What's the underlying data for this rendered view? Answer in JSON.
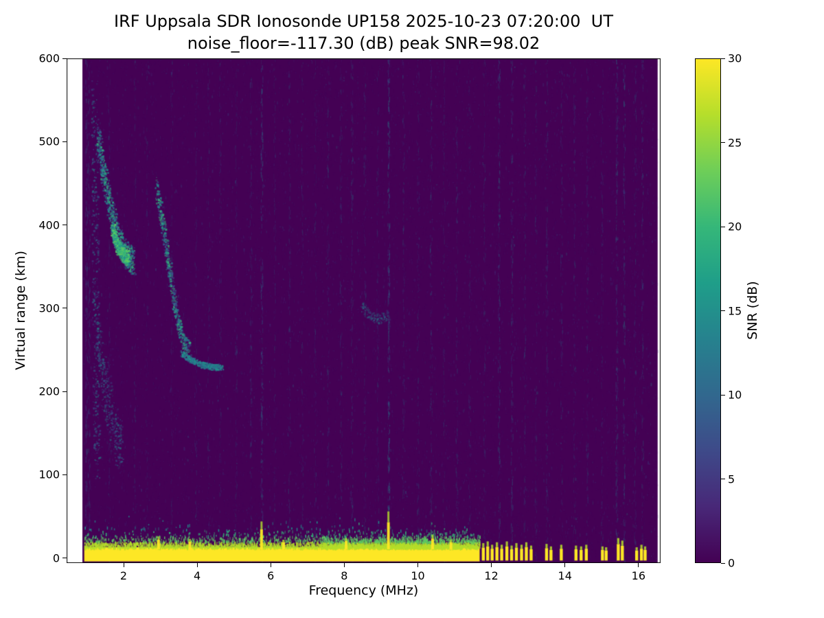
{
  "window": {
    "background": "#ffffff"
  },
  "chart_data": {
    "type": "heatmap",
    "title": "IRF Uppsala SDR Ionosonde UP158 2025-10-23 07:20:00  UT",
    "subtitle": "noise_floor=-117.30 (dB) peak SNR=98.02",
    "station": "IRF Uppsala SDR Ionosonde UP158",
    "timestamp_ut": "2025-10-23 07:20:00",
    "noise_floor_db": -117.3,
    "peak_snr_db": 98.02,
    "xlabel": "Frequency (MHz)",
    "ylabel": "Virtual range (km)",
    "xlim": [
      0.45,
      16.6
    ],
    "ylim": [
      -6,
      600
    ],
    "xticks": [
      2,
      4,
      6,
      8,
      10,
      12,
      14,
      16
    ],
    "yticks": [
      0,
      100,
      200,
      300,
      400,
      500,
      600
    ],
    "grid": false,
    "colorbar": {
      "label": "SNR (dB)",
      "min": 0,
      "max": 30,
      "ticks": [
        0,
        5,
        10,
        15,
        20,
        25,
        30
      ],
      "colormap": "viridis",
      "stops": [
        "#440154",
        "#482878",
        "#3e4a89",
        "#31688e",
        "#26828e",
        "#1f9e89",
        "#35b779",
        "#6ece58",
        "#b5de2b",
        "#fde725"
      ]
    },
    "data_extent": {
      "f_min": 0.88,
      "f_max": 16.52
    },
    "colors": {
      "plot_bg": "#440154",
      "noise_colors": [
        "#46327e",
        "#3b528b",
        "#2c728e",
        "#21918c"
      ],
      "band_core": "#fde725",
      "fringe": [
        "#b5de2b",
        "#5ec962",
        "#35b779",
        "#21918c"
      ],
      "text": "#000000"
    },
    "features": {
      "ground_pulse_band": {
        "f_start": 0.93,
        "f_end": 11.68,
        "km_low": -4,
        "km_high": 13,
        "snr_db": 30
      },
      "band_spikes": [
        {
          "f": 2.95,
          "top_km": 26
        },
        {
          "f": 3.8,
          "top_km": 23
        },
        {
          "f": 5.75,
          "top_km": 44
        },
        {
          "f": 6.35,
          "top_km": 22
        },
        {
          "f": 8.05,
          "top_km": 24
        },
        {
          "f": 9.2,
          "top_km": 56
        },
        {
          "f": 10.4,
          "top_km": 28
        },
        {
          "f": 10.9,
          "top_km": 22
        }
      ],
      "low_altitude_blips": [
        {
          "f": 11.78,
          "top_km": 18
        },
        {
          "f": 11.9,
          "top_km": 20
        },
        {
          "f": 12.02,
          "top_km": 16
        },
        {
          "f": 12.15,
          "top_km": 19
        },
        {
          "f": 12.28,
          "top_km": 16
        },
        {
          "f": 12.42,
          "top_km": 20
        },
        {
          "f": 12.55,
          "top_km": 15
        },
        {
          "f": 12.68,
          "top_km": 18
        },
        {
          "f": 12.82,
          "top_km": 16
        },
        {
          "f": 12.95,
          "top_km": 19
        },
        {
          "f": 13.08,
          "top_km": 15
        },
        {
          "f": 13.5,
          "top_km": 17
        },
        {
          "f": 13.62,
          "top_km": 14
        },
        {
          "f": 13.9,
          "top_km": 16
        },
        {
          "f": 14.3,
          "top_km": 15
        },
        {
          "f": 14.44,
          "top_km": 14
        },
        {
          "f": 14.58,
          "top_km": 16
        },
        {
          "f": 15.02,
          "top_km": 14
        },
        {
          "f": 15.12,
          "top_km": 13
        },
        {
          "f": 15.45,
          "top_km": 24
        },
        {
          "f": 15.56,
          "top_km": 21
        },
        {
          "f": 15.95,
          "top_km": 13
        },
        {
          "f": 16.08,
          "top_km": 16
        },
        {
          "f": 16.18,
          "top_km": 14
        }
      ],
      "echo_traces": [
        {
          "name": "f-region-descending-trace",
          "points": [
            [
              1.3,
              505
            ],
            [
              1.42,
              468
            ],
            [
              1.55,
              438
            ],
            [
              1.68,
              412
            ],
            [
              1.8,
              390
            ],
            [
              1.95,
              372
            ],
            [
              2.1,
              362
            ],
            [
              2.25,
              357
            ]
          ],
          "xspread": 0.07,
          "yspread": 16,
          "density": 1000,
          "alpha_min": 0.25,
          "alpha_max": 0.9,
          "colors": [
            "#21918c",
            "#2c728e",
            "#35b779",
            "#3b528b"
          ]
        },
        {
          "name": "f-region-bright-core",
          "points": [
            [
              1.68,
              395
            ],
            [
              1.82,
              375
            ],
            [
              1.98,
              365
            ],
            [
              2.1,
              361
            ]
          ],
          "xspread": 0.05,
          "yspread": 9,
          "density": 520,
          "alpha_min": 0.5,
          "alpha_max": 1,
          "colors": [
            "#35b779",
            "#5ec962",
            "#21918c"
          ]
        },
        {
          "name": "cusp-descending-trace",
          "points": [
            [
              2.88,
              448
            ],
            [
              2.98,
              420
            ],
            [
              3.08,
              392
            ],
            [
              3.18,
              362
            ],
            [
              3.28,
              332
            ],
            [
              3.38,
              305
            ],
            [
              3.5,
              278
            ],
            [
              3.62,
              260
            ],
            [
              3.78,
              250
            ]
          ],
          "xspread": 0.05,
          "yspread": 11,
          "density": 650,
          "alpha_min": 0.25,
          "alpha_max": 0.85,
          "colors": [
            "#21918c",
            "#2c728e",
            "#3b528b",
            "#35b779"
          ]
        },
        {
          "name": "flat-echo-230km",
          "points": [
            [
              3.55,
              247
            ],
            [
              3.8,
              239
            ],
            [
              4.1,
              233
            ],
            [
              4.4,
              230
            ],
            [
              4.68,
              230
            ]
          ],
          "xspread": 0.03,
          "yspread": 3.5,
          "density": 400,
          "alpha_min": 0.35,
          "alpha_max": 0.9,
          "colors": [
            "#21918c",
            "#2c728e"
          ]
        },
        {
          "name": "left-edge-scatter-column",
          "points": [
            [
              1.2,
              555
            ],
            [
              1.22,
              330
            ],
            [
              1.26,
              110
            ]
          ],
          "xspread": 0.09,
          "yspread": 22,
          "density": 420,
          "alpha_min": 0.15,
          "alpha_max": 0.6,
          "colors": [
            "#2c728e",
            "#21918c",
            "#3b528b"
          ]
        },
        {
          "name": "low-left-diffuse-scatter",
          "points": [
            [
              1.32,
              255
            ],
            [
              1.46,
              212
            ],
            [
              1.6,
              180
            ],
            [
              1.75,
              152
            ],
            [
              1.92,
              130
            ]
          ],
          "xspread": 0.11,
          "yspread": 26,
          "density": 360,
          "alpha_min": 0.12,
          "alpha_max": 0.5,
          "colors": [
            "#2c728e",
            "#3b528b",
            "#21918c"
          ]
        },
        {
          "name": "faint-arc-9mhz",
          "points": [
            [
              8.45,
              303
            ],
            [
              8.7,
              292
            ],
            [
              8.95,
              287
            ],
            [
              9.18,
              293
            ]
          ],
          "xspread": 0.05,
          "yspread": 6,
          "density": 150,
          "alpha_min": 0.1,
          "alpha_max": 0.4,
          "colors": [
            "#2c728e",
            "#21918c"
          ]
        }
      ],
      "rfi_lines": [
        {
          "f": 0.98,
          "strength": 0.45
        },
        {
          "f": 1.05,
          "strength": 0.4
        },
        {
          "f": 1.6,
          "strength": 0.25
        },
        {
          "f": 2.3,
          "strength": 0.2
        },
        {
          "f": 2.62,
          "strength": 0.18
        },
        {
          "f": 3.3,
          "strength": 0.2
        },
        {
          "f": 3.95,
          "strength": 0.25
        },
        {
          "f": 4.3,
          "strength": 0.2
        },
        {
          "f": 4.62,
          "strength": 0.25
        },
        {
          "f": 5.05,
          "strength": 0.25
        },
        {
          "f": 5.45,
          "strength": 0.3
        },
        {
          "f": 5.75,
          "strength": 0.6
        },
        {
          "f": 6.1,
          "strength": 0.25
        },
        {
          "f": 6.5,
          "strength": 0.3
        },
        {
          "f": 6.85,
          "strength": 0.25
        },
        {
          "f": 7.2,
          "strength": 0.25
        },
        {
          "f": 7.55,
          "strength": 0.3
        },
        {
          "f": 7.9,
          "strength": 0.3
        },
        {
          "f": 8.2,
          "strength": 0.35
        },
        {
          "f": 8.55,
          "strength": 0.3
        },
        {
          "f": 8.9,
          "strength": 0.25
        },
        {
          "f": 9.2,
          "strength": 0.65
        },
        {
          "f": 9.6,
          "strength": 0.3
        },
        {
          "f": 10.0,
          "strength": 0.25
        },
        {
          "f": 10.35,
          "strength": 0.35
        },
        {
          "f": 10.7,
          "strength": 0.25
        },
        {
          "f": 11.05,
          "strength": 0.3
        },
        {
          "f": 11.4,
          "strength": 0.25
        },
        {
          "f": 11.8,
          "strength": 0.25
        },
        {
          "f": 12.2,
          "strength": 0.45
        },
        {
          "f": 12.55,
          "strength": 0.4
        },
        {
          "f": 12.9,
          "strength": 0.3
        },
        {
          "f": 13.2,
          "strength": 0.25
        },
        {
          "f": 13.5,
          "strength": 0.35
        },
        {
          "f": 13.9,
          "strength": 0.28
        },
        {
          "f": 14.25,
          "strength": 0.3
        },
        {
          "f": 14.6,
          "strength": 0.3
        },
        {
          "f": 15.0,
          "strength": 0.25
        },
        {
          "f": 15.4,
          "strength": 0.5
        },
        {
          "f": 15.6,
          "strength": 0.45
        },
        {
          "f": 15.9,
          "strength": 0.3
        },
        {
          "f": 16.1,
          "strength": 0.35
        }
      ]
    }
  }
}
